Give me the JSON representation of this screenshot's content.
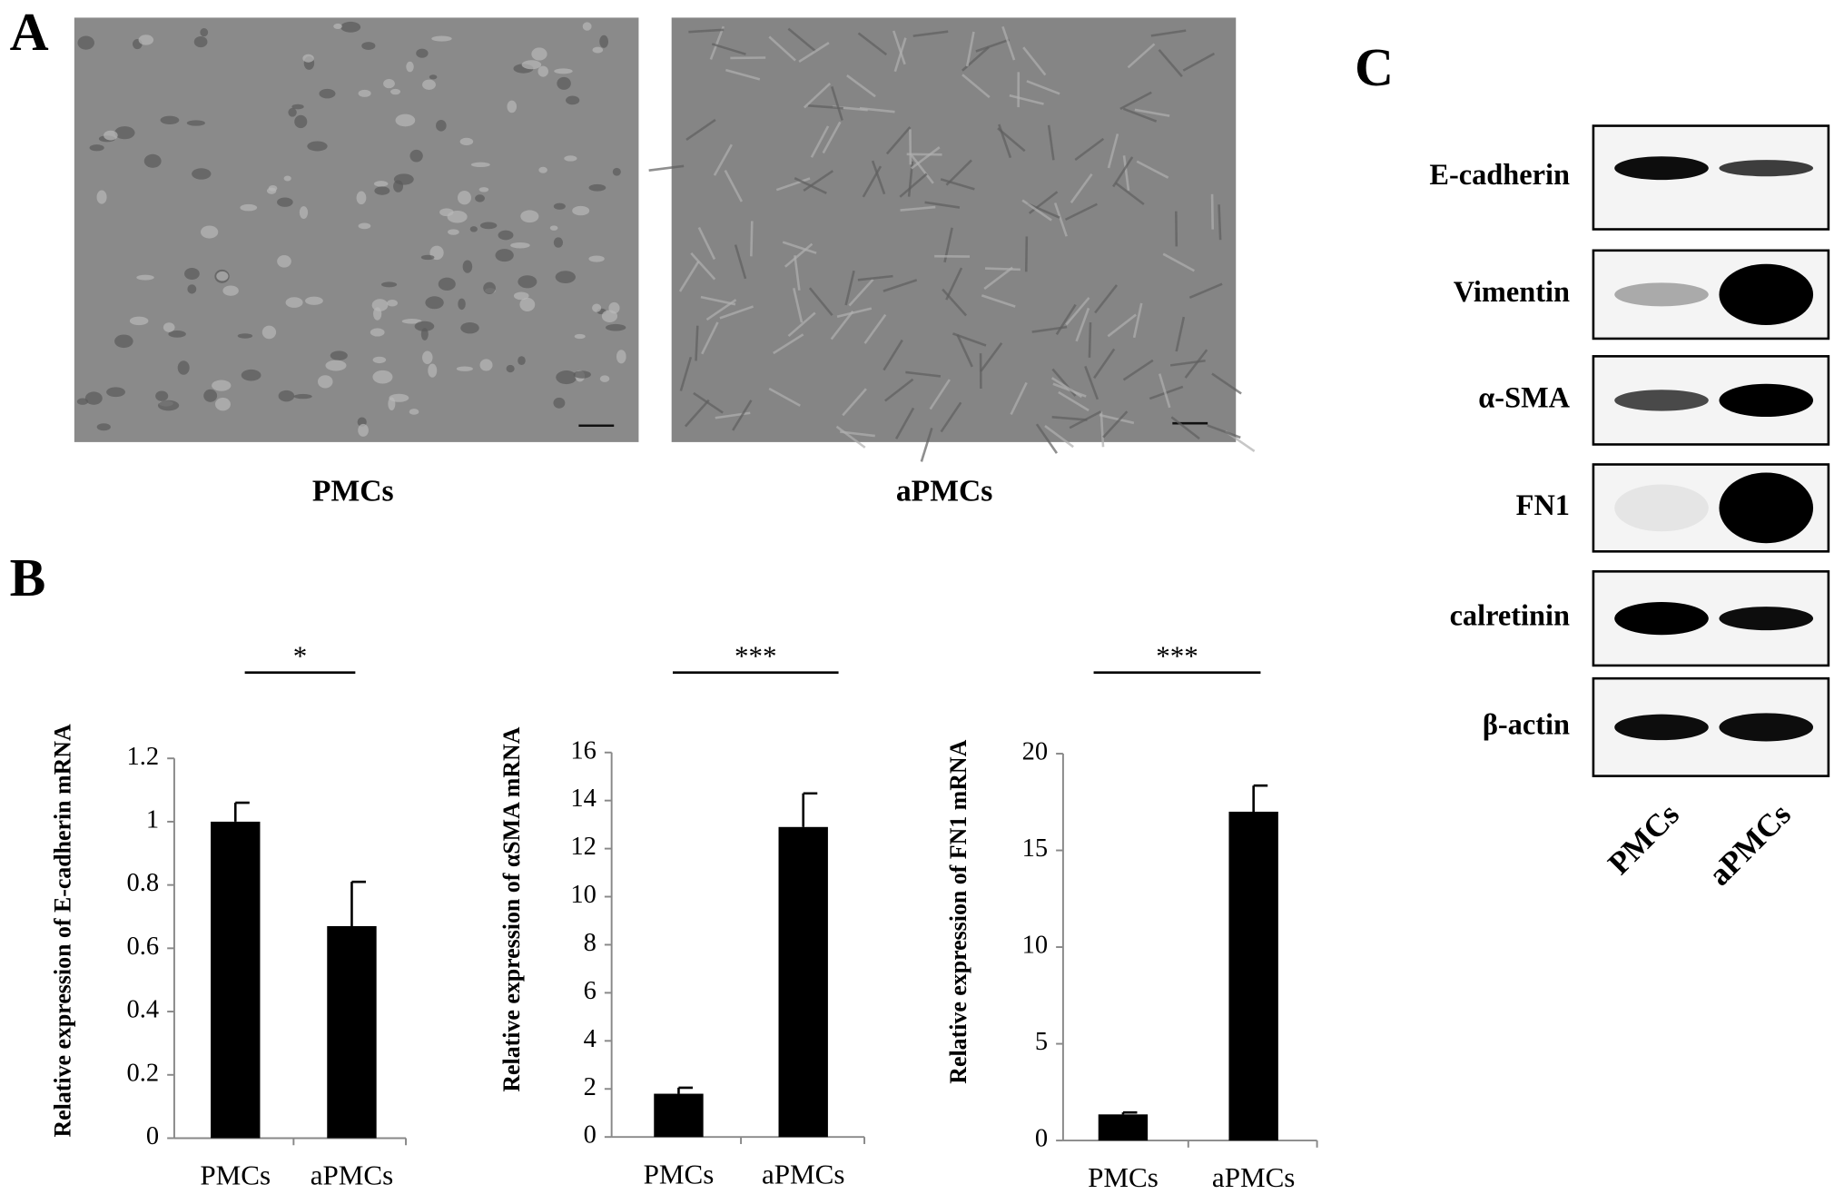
{
  "panels": {
    "a": "A",
    "b": "B",
    "c": "C"
  },
  "images": {
    "captions": [
      "PMCs",
      "aPMCs"
    ]
  },
  "chart_data": [
    {
      "type": "bar",
      "y_label": "Relative expression of E-cadherin mRNA",
      "categories": [
        "PMCs",
        "aPMCs"
      ],
      "values": [
        1.0,
        0.67
      ],
      "errors": [
        0.06,
        0.14
      ],
      "color": "#000000",
      "ylim": [
        0,
        1.2
      ],
      "yticks": [
        0,
        0.2,
        0.4,
        0.6,
        0.8,
        1,
        1.2
      ],
      "significance": "*"
    },
    {
      "type": "bar",
      "y_label": "Relative expression of αSMA mRNA",
      "categories": [
        "PMCs",
        "aPMCs"
      ],
      "values": [
        1.8,
        12.9
      ],
      "errors": [
        0.25,
        1.4
      ],
      "color": "#000000",
      "ylim": [
        0,
        16
      ],
      "yticks": [
        0,
        2,
        4,
        6,
        8,
        10,
        12,
        14,
        16
      ],
      "significance": "***"
    },
    {
      "type": "bar",
      "y_label": "Relative expression of FN1 mRNA",
      "categories": [
        "PMCs",
        "aPMCs"
      ],
      "values": [
        1.35,
        17.0
      ],
      "errors": [
        0.1,
        1.35
      ],
      "color": "#000000",
      "ylim": [
        0,
        20
      ],
      "yticks": [
        0,
        5,
        10,
        15,
        20
      ],
      "significance": "***"
    }
  ],
  "blot": {
    "rows": [
      "E-cadherin",
      "Vimentin",
      "α-SMA",
      "FN1",
      "calretinin",
      "β-actin"
    ],
    "lanes": [
      "PMCs",
      "aPMCs"
    ]
  }
}
